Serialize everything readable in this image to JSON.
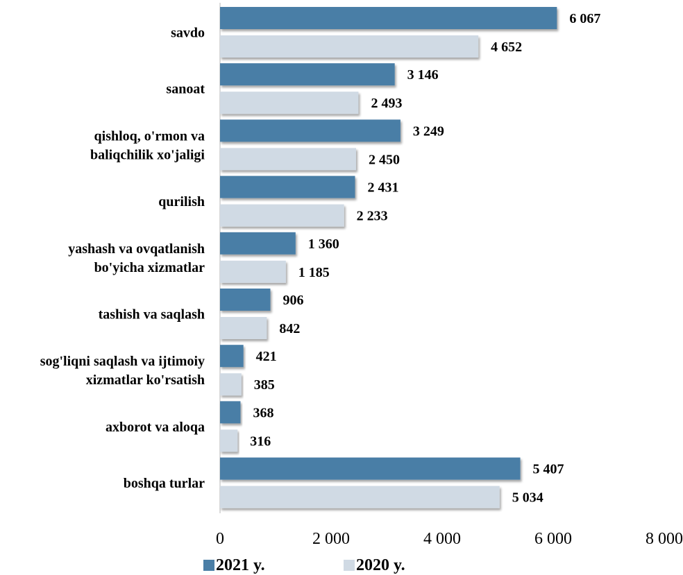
{
  "chart_data": {
    "type": "bar",
    "orientation": "horizontal",
    "categories": [
      [
        "savdo"
      ],
      [
        "sanoat"
      ],
      [
        "qishloq, o'rmon va",
        "baliqchilik xo'jaligi"
      ],
      [
        "qurilish"
      ],
      [
        "yashash va ovqatlanish",
        "bo'yicha xizmatlar"
      ],
      [
        "tashish va saqlash"
      ],
      [
        "sog'liqni saqlash va ijtimoiy",
        "xizmatlar ko'rsatish"
      ],
      [
        "axborot va aloqa"
      ],
      [
        "boshqa turlar"
      ]
    ],
    "series": [
      {
        "name": "2021 y.",
        "color": "#4A7EA6",
        "values": [
          6067,
          3146,
          3249,
          2431,
          1360,
          906,
          421,
          368,
          5407
        ],
        "labels": [
          "6 067",
          "3 146",
          "3 249",
          "2 431",
          "1 360",
          "906",
          "421",
          "368",
          "5 407"
        ]
      },
      {
        "name": "2020 y.",
        "color": "#D0DAE4",
        "values": [
          4652,
          2493,
          2450,
          2233,
          1185,
          842,
          385,
          316,
          5034
        ],
        "labels": [
          "4 652",
          "2 493",
          "2 450",
          "2 233",
          "1 185",
          "842",
          "385",
          "316",
          "5 034"
        ]
      }
    ],
    "xlim": [
      0,
      8000
    ],
    "xticks": [
      0,
      2000,
      4000,
      6000,
      8000
    ],
    "xtick_labels": [
      "0",
      "2 000",
      "4 000",
      "6 000",
      "8 000"
    ],
    "title": "",
    "xlabel": "",
    "ylabel": "",
    "grid": false,
    "legend_position": "bottom-left"
  }
}
